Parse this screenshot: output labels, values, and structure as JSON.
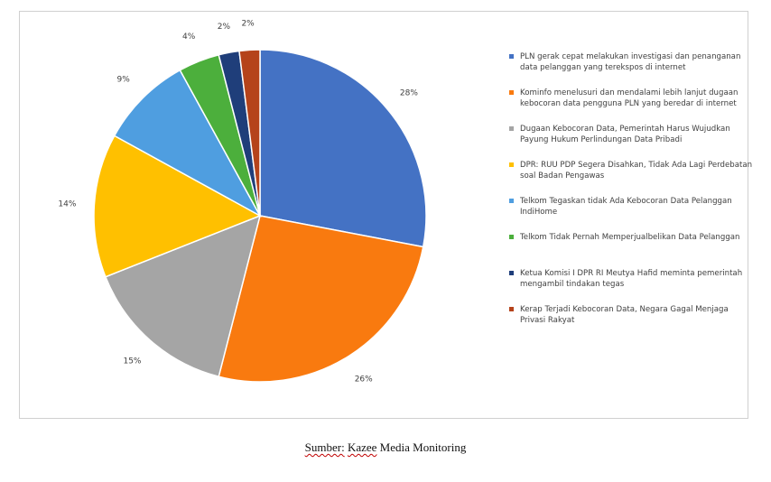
{
  "chart_data": {
    "type": "pie",
    "slices": [
      {
        "label": "PLN gerak cepat melakukan investigasi dan penanganan data pelanggan yang terekspos di internet",
        "value": 28,
        "value_label": "28%",
        "color": "#4472c4"
      },
      {
        "label": "Kominfo menelusuri dan mendalami lebih lanjut dugaan kebocoran data pengguna PLN yang beredar di internet",
        "value": 26,
        "value_label": "26%",
        "color": "#f97a0f"
      },
      {
        "label": "Dugaan Kebocoran Data, Pemerintah Harus Wujudkan Payung Hukum Perlindungan Data Pribadi",
        "value": 15,
        "value_label": "15%",
        "color": "#a5a5a5"
      },
      {
        "label": "DPR: RUU PDP Segera Disahkan, Tidak Ada Lagi Perdebatan soal Badan Pengawas",
        "value": 14,
        "value_label": "14%",
        "color": "#ffc000"
      },
      {
        "label": "Telkom Tegaskan tidak Ada Kebocoran Data Pelanggan IndiHome",
        "value": 9,
        "value_label": "9%",
        "color": "#4f9ee0"
      },
      {
        "label": "Telkom Tidak Pernah Memperjualbelikan Data Pelanggan",
        "value": 4,
        "value_label": "4%",
        "color": "#4caf3c"
      },
      {
        "label": "Ketua Komisi I DPR RI Meutya Hafid meminta pemerintah mengambil tindakan tegas",
        "value": 2,
        "value_label": "2%",
        "color": "#1f3e7a"
      },
      {
        "label": "Kerap Terjadi Kebocoran Data, Negara Gagal Menjaga Privasi Rakyat",
        "value": 2,
        "value_label": "2%",
        "color": "#b5431b"
      }
    ],
    "legend_position": "right",
    "start_angle": "12 o'clock",
    "direction": "clockwise"
  },
  "caption": {
    "prefix": "Sumber:",
    "prefix_separator": " ",
    "brand": "Kazee",
    "rest": " Media Monitoring"
  }
}
